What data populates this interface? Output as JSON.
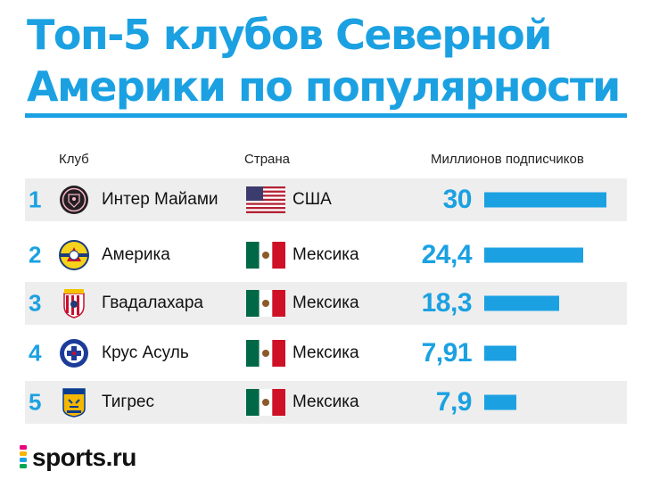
{
  "title_line1": "Топ-5 клубов Северной",
  "title_line2": "Америки по популярности",
  "headers": {
    "club": "Клуб",
    "country": "Страна",
    "subs": "Миллионов подписчиков"
  },
  "accent_color": "#1ba1e2",
  "rows": [
    {
      "rank": "1",
      "club": "Интер Майами",
      "country": "США",
      "flag": "usa-flag",
      "logo": "inter-miami-crest",
      "value_label": "30"
    },
    {
      "rank": "2",
      "club": "Америка",
      "country": "Мексика",
      "flag": "mexico-flag",
      "logo": "club-america-crest",
      "value_label": "24,4"
    },
    {
      "rank": "3",
      "club": "Гвадалахара",
      "country": "Мексика",
      "flag": "mexico-flag",
      "logo": "chivas-crest",
      "value_label": "18,3"
    },
    {
      "rank": "4",
      "club": "Крус Асуль",
      "country": "Мексика",
      "flag": "mexico-flag",
      "logo": "cruz-azul-crest",
      "value_label": "7,91"
    },
    {
      "rank": "5",
      "club": "Тигрес",
      "country": "Мексика",
      "flag": "mexico-flag",
      "logo": "tigres-crest",
      "value_label": "7,9"
    }
  ],
  "chart_data": {
    "type": "bar",
    "orientation": "horizontal",
    "title": "Топ-5 клубов Северной Америки по популярности",
    "categories": [
      "Интер Майами",
      "Америка",
      "Гвадалахара",
      "Крус Асуль",
      "Тигрес"
    ],
    "values": [
      30,
      24.4,
      18.3,
      7.91,
      7.9
    ],
    "value_header": "Миллионов подписчиков",
    "xlim": [
      0,
      30
    ],
    "grid": false
  },
  "brand": {
    "text": "sports.ru"
  }
}
